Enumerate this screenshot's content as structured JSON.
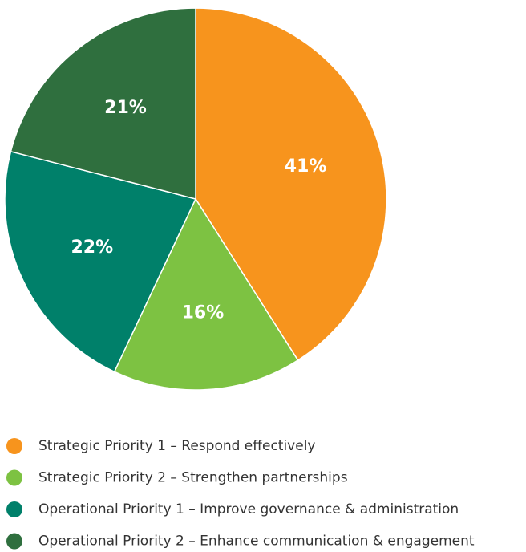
{
  "chart_data": {
    "type": "pie",
    "categories": [
      "Strategic Priority 1 – Respond effectively",
      "Strategic Priority 2 – Strengthen partnerships",
      "Operational Priority 1 – Improve governance & administration",
      "Operational Priority 2 – Enhance communication & engagement"
    ],
    "values": [
      41,
      16,
      22,
      21
    ],
    "value_labels": [
      "41%",
      "16%",
      "22%",
      "21%"
    ],
    "colors": [
      "#f7941d",
      "#7dc242",
      "#00806a",
      "#2f6f3e"
    ],
    "legend": "bottom-left"
  }
}
